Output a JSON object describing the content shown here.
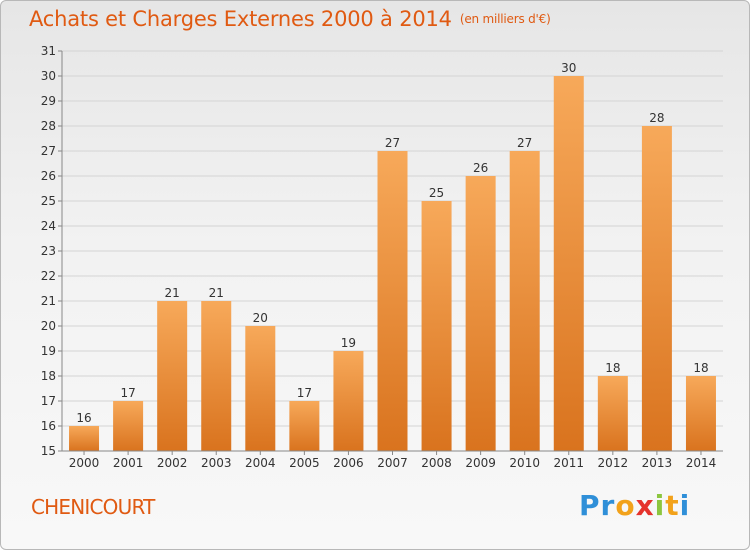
{
  "header": {
    "title": "Achats et Charges Externes 2000 à 2014",
    "unit": "(en milliers d'€)"
  },
  "footer": {
    "commune": "CHENICOURT",
    "logo_letters": [
      "P",
      "r",
      "o",
      "x",
      "i",
      "t",
      "i"
    ],
    "logo_colors": [
      "#2f8fd8",
      "#2f8fd8",
      "#f2a21b",
      "#e5322c",
      "#8cc63f",
      "#f2a21b",
      "#2f8fd8"
    ]
  },
  "colors": {
    "bar_light": "#f7a95a",
    "bar_dark": "#d9731e",
    "grid": "#d4d4d4",
    "axis": "#888888",
    "title": "#e05a12"
  },
  "chart_data": {
    "type": "bar",
    "title": "Achats et Charges Externes 2000 à 2014",
    "subtitle": "(en milliers d'€)",
    "xlabel": "",
    "ylabel": "",
    "categories": [
      "2000",
      "2001",
      "2002",
      "2003",
      "2004",
      "2005",
      "2006",
      "2007",
      "2008",
      "2009",
      "2010",
      "2011",
      "2012",
      "2013",
      "2014"
    ],
    "values": [
      16,
      17,
      21,
      21,
      20,
      17,
      19,
      27,
      25,
      26,
      27,
      30,
      18,
      28,
      18
    ],
    "ylim": [
      15,
      31
    ],
    "yticks": [
      15,
      16,
      17,
      18,
      19,
      20,
      21,
      22,
      23,
      24,
      25,
      26,
      27,
      28,
      29,
      30,
      31
    ],
    "grid": true,
    "data_labels": true
  }
}
